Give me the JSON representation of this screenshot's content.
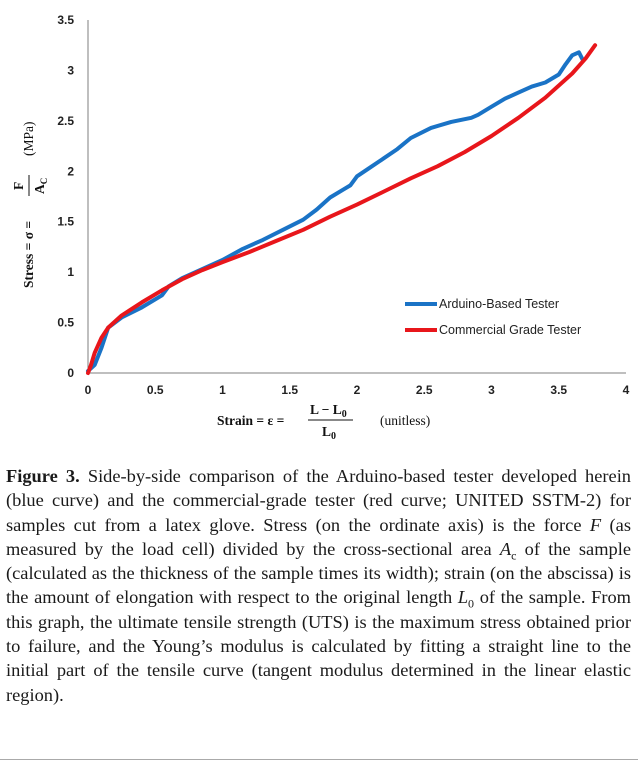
{
  "chart_data": {
    "type": "line",
    "x_ticks": [
      "0",
      "0.5",
      "1",
      "1.5",
      "2",
      "2.5",
      "3",
      "3.5",
      "4"
    ],
    "y_ticks": [
      "0",
      "0.5",
      "1",
      "1.5",
      "2",
      "2.5",
      "3",
      "3.5"
    ],
    "xlim": [
      0,
      4
    ],
    "ylim": [
      0,
      3.5
    ],
    "grid": false,
    "legend_position": "bottom-right",
    "xlabel": {
      "prefix": "Strain = ε =",
      "numerator": "L − L",
      "numerator_sub": "0",
      "denominator": "L",
      "denominator_sub": "0",
      "unit": "(unitless)"
    },
    "ylabel": {
      "prefix": "Stress = σ =",
      "numerator": "F",
      "denominator": "A",
      "denominator_sub": "C",
      "unit": "(MPa)"
    },
    "series": [
      {
        "name": "Arduino-Based Tester",
        "color": "#1a73c6",
        "points": [
          [
            0,
            0.02
          ],
          [
            0.05,
            0.08
          ],
          [
            0.1,
            0.25
          ],
          [
            0.15,
            0.45
          ],
          [
            0.25,
            0.55
          ],
          [
            0.4,
            0.65
          ],
          [
            0.55,
            0.77
          ],
          [
            0.6,
            0.86
          ],
          [
            0.7,
            0.94
          ],
          [
            0.85,
            1.03
          ],
          [
            1.0,
            1.12
          ],
          [
            1.15,
            1.23
          ],
          [
            1.3,
            1.32
          ],
          [
            1.45,
            1.42
          ],
          [
            1.6,
            1.52
          ],
          [
            1.7,
            1.62
          ],
          [
            1.8,
            1.74
          ],
          [
            1.9,
            1.82
          ],
          [
            1.95,
            1.86
          ],
          [
            2.0,
            1.95
          ],
          [
            2.1,
            2.04
          ],
          [
            2.2,
            2.13
          ],
          [
            2.3,
            2.22
          ],
          [
            2.4,
            2.33
          ],
          [
            2.55,
            2.43
          ],
          [
            2.7,
            2.49
          ],
          [
            2.85,
            2.53
          ],
          [
            2.9,
            2.56
          ],
          [
            3.0,
            2.64
          ],
          [
            3.1,
            2.72
          ],
          [
            3.2,
            2.78
          ],
          [
            3.3,
            2.84
          ],
          [
            3.4,
            2.88
          ],
          [
            3.5,
            2.96
          ],
          [
            3.55,
            3.06
          ],
          [
            3.6,
            3.15
          ],
          [
            3.65,
            3.18
          ],
          [
            3.68,
            3.1
          ]
        ]
      },
      {
        "name": "Commercial Grade Tester",
        "color": "#e8161b",
        "points": [
          [
            0,
            0.0
          ],
          [
            0.02,
            0.07
          ],
          [
            0.05,
            0.2
          ],
          [
            0.1,
            0.35
          ],
          [
            0.15,
            0.45
          ],
          [
            0.25,
            0.57
          ],
          [
            0.4,
            0.7
          ],
          [
            0.55,
            0.82
          ],
          [
            0.7,
            0.93
          ],
          [
            0.85,
            1.02
          ],
          [
            1.0,
            1.1
          ],
          [
            1.2,
            1.2
          ],
          [
            1.4,
            1.31
          ],
          [
            1.6,
            1.42
          ],
          [
            1.8,
            1.55
          ],
          [
            2.0,
            1.67
          ],
          [
            2.2,
            1.8
          ],
          [
            2.4,
            1.93
          ],
          [
            2.6,
            2.05
          ],
          [
            2.8,
            2.19
          ],
          [
            3.0,
            2.35
          ],
          [
            3.2,
            2.53
          ],
          [
            3.4,
            2.73
          ],
          [
            3.6,
            2.97
          ],
          [
            3.7,
            3.12
          ],
          [
            3.77,
            3.25
          ]
        ]
      }
    ]
  },
  "caption": {
    "label": "Figure 3.",
    "segments": [
      {
        "t": " Side-by-side comparison of the Arduino-based tester developed herein (blue curve) and the commercial-grade tester (red curve; UNITED SSTM-2) for samples cut from a latex glove. Stress (on the ordinate axis) is the force "
      },
      {
        "t": "F",
        "i": true
      },
      {
        "t": " (as measured by the load cell) divided by the cross-sectional area "
      },
      {
        "t": "A",
        "i": true
      },
      {
        "t": "c",
        "sub": true
      },
      {
        "t": " of the sample (calculated as the thickness of the sample times its width); strain (on the abscissa) is the amount of elongation with respect to the original length "
      },
      {
        "t": "L",
        "i": true
      },
      {
        "t": "0",
        "sub": true
      },
      {
        "t": " of the sample. From this graph, the ultimate tensile strength (UTS) is the maximum stress obtained prior to failure, and the Young’s modulus is calculated by fitting a straight line to the initial part of the tensile curve (tangent modulus determined in the linear elastic region)."
      }
    ]
  }
}
